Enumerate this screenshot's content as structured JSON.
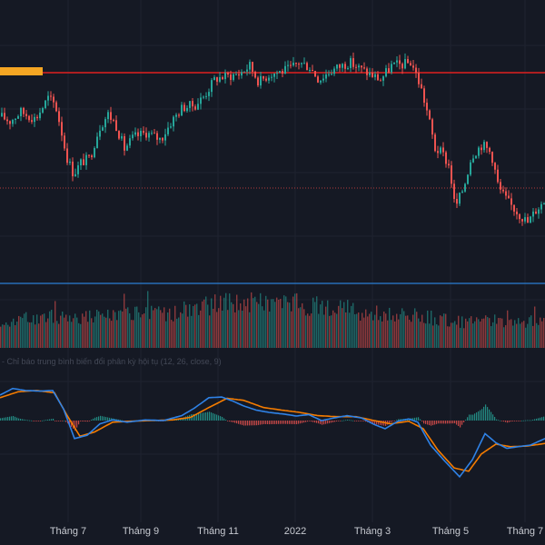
{
  "chart_data": {
    "type": "candlestick",
    "colors": {
      "background": "#151924",
      "grid": "#1f2330",
      "up": "#26a69a",
      "down": "#ef5350",
      "resistance": "#e0201f",
      "resistance_marker": "#f5a623",
      "support": "#b33b3b",
      "volume_line": "#2a7fd4",
      "macd": "#2f82e6",
      "signal": "#f57c00",
      "hist_up": "#26a69a",
      "hist_down": "#ef5350",
      "axis_text": "#c7cad1"
    },
    "x_ticks": [
      "Tháng 7",
      "Tháng 9",
      "Tháng 11",
      "2022",
      "Tháng 3",
      "Tháng 5",
      "Tháng 7"
    ],
    "price_levels": {
      "resistance": 1.0,
      "support": 0.0
    },
    "price_path": [
      [
        0,
        0.62
      ],
      [
        10,
        0.58
      ],
      [
        22,
        0.66
      ],
      [
        38,
        0.6
      ],
      [
        52,
        0.78
      ],
      [
        60,
        0.72
      ],
      [
        66,
        0.52
      ],
      [
        72,
        0.28
      ],
      [
        80,
        0.12
      ],
      [
        88,
        0.22
      ],
      [
        98,
        0.26
      ],
      [
        108,
        0.52
      ],
      [
        118,
        0.64
      ],
      [
        126,
        0.56
      ],
      [
        136,
        0.34
      ],
      [
        146,
        0.44
      ],
      [
        160,
        0.48
      ],
      [
        176,
        0.42
      ],
      [
        188,
        0.58
      ],
      [
        200,
        0.7
      ],
      [
        214,
        0.72
      ],
      [
        224,
        0.8
      ],
      [
        236,
        0.95
      ],
      [
        250,
        0.97
      ],
      [
        262,
        0.99
      ],
      [
        274,
        1.06
      ],
      [
        284,
        0.92
      ],
      [
        296,
        0.99
      ],
      [
        308,
        1.01
      ],
      [
        318,
        1.03
      ],
      [
        328,
        1.09
      ],
      [
        340,
        1.05
      ],
      [
        350,
        0.94
      ],
      [
        360,
        1.0
      ],
      [
        372,
        1.05
      ],
      [
        384,
        1.09
      ],
      [
        396,
        1.03
      ],
      [
        408,
        0.98
      ],
      [
        418,
        0.94
      ],
      [
        430,
        1.06
      ],
      [
        442,
        1.07
      ],
      [
        452,
        1.09
      ],
      [
        462,
        0.88
      ],
      [
        470,
        0.64
      ],
      [
        478,
        0.34
      ],
      [
        486,
        0.3
      ],
      [
        494,
        0.18
      ],
      [
        500,
        -0.18
      ],
      [
        510,
        0.02
      ],
      [
        518,
        0.28
      ],
      [
        530,
        0.38
      ],
      [
        540,
        0.3
      ],
      [
        548,
        0.0
      ],
      [
        558,
        -0.12
      ],
      [
        570,
        -0.22
      ],
      [
        580,
        -0.3
      ],
      [
        590,
        -0.18
      ],
      [
        600,
        -0.1
      ]
    ],
    "volume_profile": [
      [
        0,
        0.42
      ],
      [
        60,
        0.48
      ],
      [
        120,
        0.5
      ],
      [
        200,
        0.55
      ],
      [
        240,
        0.7
      ],
      [
        300,
        0.72
      ],
      [
        340,
        0.66
      ],
      [
        400,
        0.55
      ],
      [
        460,
        0.5
      ],
      [
        500,
        0.4
      ],
      [
        560,
        0.42
      ],
      [
        600,
        0.4
      ]
    ],
    "macd_path": [
      [
        0,
        0.78
      ],
      [
        14,
        0.98
      ],
      [
        28,
        0.92
      ],
      [
        44,
        0.9
      ],
      [
        58,
        0.92
      ],
      [
        70,
        0.35
      ],
      [
        82,
        -0.55
      ],
      [
        96,
        -0.45
      ],
      [
        110,
        -0.1
      ],
      [
        124,
        0.02
      ],
      [
        140,
        -0.05
      ],
      [
        160,
        0.02
      ],
      [
        180,
        0.0
      ],
      [
        200,
        0.15
      ],
      [
        214,
        0.38
      ],
      [
        230,
        0.7
      ],
      [
        244,
        0.72
      ],
      [
        256,
        0.6
      ],
      [
        268,
        0.45
      ],
      [
        282,
        0.32
      ],
      [
        296,
        0.25
      ],
      [
        312,
        0.2
      ],
      [
        326,
        0.14
      ],
      [
        340,
        0.18
      ],
      [
        354,
        0.0
      ],
      [
        368,
        0.08
      ],
      [
        382,
        0.15
      ],
      [
        398,
        0.08
      ],
      [
        412,
        -0.12
      ],
      [
        424,
        -0.25
      ],
      [
        438,
        -0.02
      ],
      [
        450,
        0.05
      ],
      [
        460,
        -0.05
      ],
      [
        474,
        -0.75
      ],
      [
        490,
        -1.25
      ],
      [
        506,
        -1.72
      ],
      [
        520,
        -1.2
      ],
      [
        534,
        -0.4
      ],
      [
        546,
        -0.68
      ],
      [
        558,
        -0.85
      ],
      [
        570,
        -0.8
      ],
      [
        584,
        -0.75
      ],
      [
        600,
        -0.55
      ]
    ],
    "signal_path": [
      [
        0,
        0.7
      ],
      [
        20,
        0.88
      ],
      [
        40,
        0.92
      ],
      [
        60,
        0.85
      ],
      [
        74,
        0.15
      ],
      [
        88,
        -0.48
      ],
      [
        104,
        -0.35
      ],
      [
        124,
        -0.05
      ],
      [
        144,
        -0.02
      ],
      [
        166,
        0.0
      ],
      [
        190,
        0.02
      ],
      [
        210,
        0.1
      ],
      [
        230,
        0.4
      ],
      [
        250,
        0.68
      ],
      [
        268,
        0.62
      ],
      [
        290,
        0.4
      ],
      [
        310,
        0.32
      ],
      [
        330,
        0.25
      ],
      [
        350,
        0.15
      ],
      [
        370,
        0.12
      ],
      [
        392,
        0.12
      ],
      [
        412,
        0.0
      ],
      [
        430,
        -0.1
      ],
      [
        450,
        -0.02
      ],
      [
        466,
        -0.25
      ],
      [
        482,
        -0.9
      ],
      [
        500,
        -1.45
      ],
      [
        516,
        -1.55
      ],
      [
        530,
        -1.02
      ],
      [
        546,
        -0.72
      ],
      [
        562,
        -0.8
      ],
      [
        580,
        -0.78
      ],
      [
        600,
        -0.7
      ]
    ],
    "macd_label": "- Chỉ báo trung bình biến đổi phân kỳ hội tụ (12, 26, close, 9)"
  }
}
